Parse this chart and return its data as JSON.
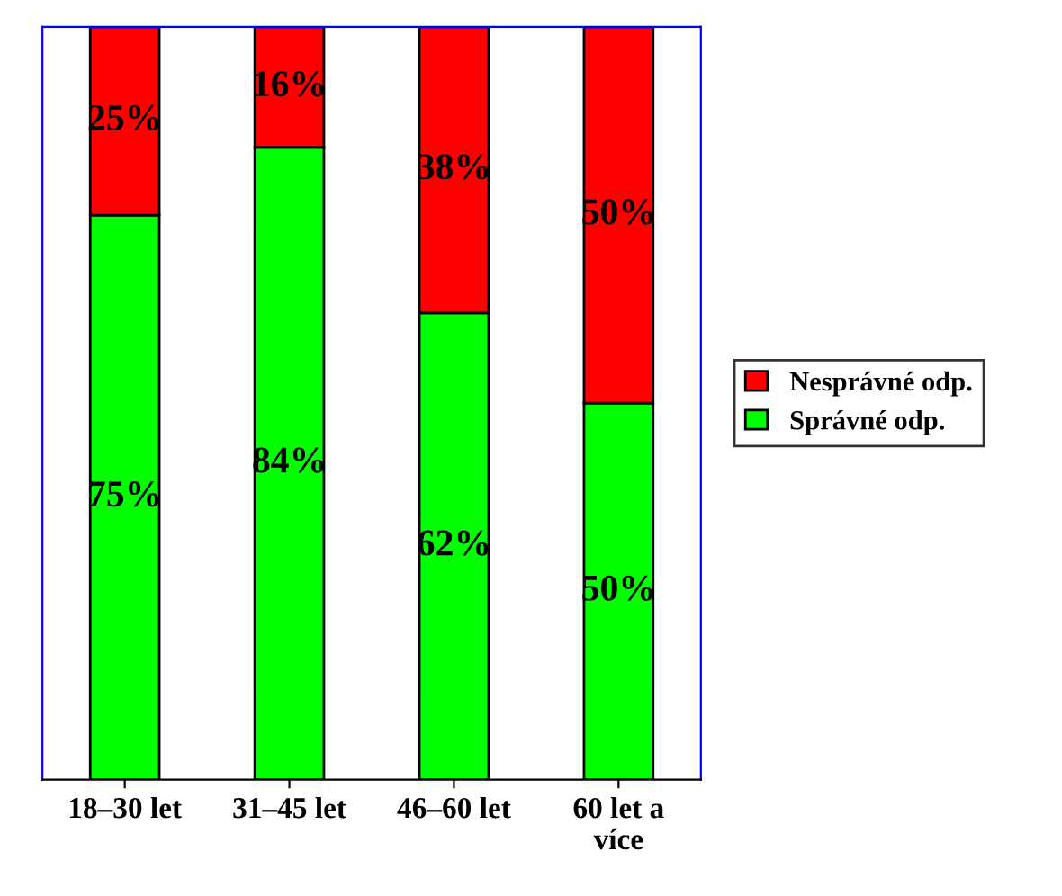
{
  "chart_data": {
    "type": "bar",
    "stacked": true,
    "categories": [
      "18–30 let",
      "31–45 let",
      "46–60 let",
      "60 let a\nvíce"
    ],
    "series": [
      {
        "name": "Správné odp.",
        "color": "#00ff00",
        "values": [
          75,
          84,
          62,
          50
        ],
        "value_labels": [
          "75%",
          "84%",
          "62%",
          "50%"
        ]
      },
      {
        "name": "Nesprávné odp.",
        "color": "#ff0000",
        "values": [
          25,
          16,
          38,
          50
        ],
        "value_labels": [
          "25%",
          "16%",
          "38%",
          "50%"
        ]
      }
    ],
    "legend": "right",
    "grid": false
  }
}
